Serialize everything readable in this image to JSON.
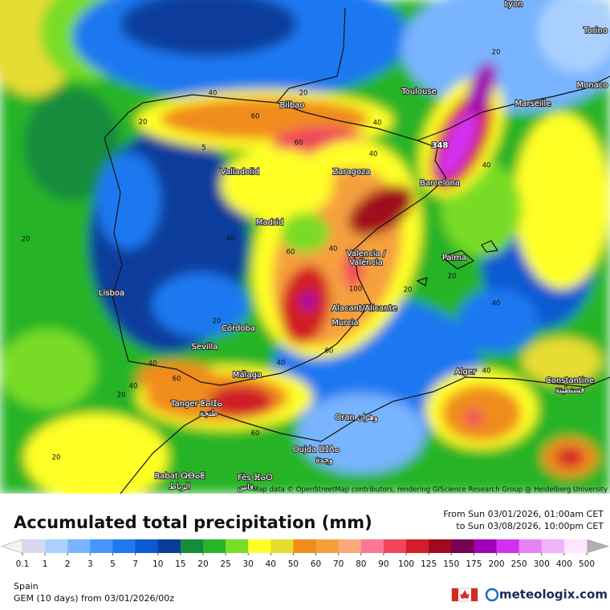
{
  "map": {
    "attribution": "Map data © OpenStreetMap contributors, rendering GIScience Research Group @ Heidelberg University",
    "cities": [
      "Lyon",
      "Torino",
      "Monaco",
      "Marseille",
      "Toulouse",
      "Bilbao",
      "Zaragoza",
      "Barcelona",
      "Valladolid",
      "Madrid",
      "Valencia /",
      "València",
      "Palma",
      "Lisboa",
      "Alacant/Alicante",
      "Murcia",
      "Córdoba",
      "Sevilla",
      "Málaga",
      "Alger",
      "Constantine",
      "قسنطينة",
      "Tanger ⵟⴰⵏⵊⴰ",
      "طنجة",
      "Oran وهران",
      "Oujda ⵡⵊⴷⴰ",
      "وجدة",
      "Rabat ⵕⴱⴰⵟ",
      "الرباط",
      "Fès ⴼⴰⵙ",
      "فاس"
    ],
    "max_label": "348",
    "contour_labels": [
      "40",
      "20",
      "60",
      "20",
      "5",
      "40",
      "60",
      "40",
      "20",
      "40",
      "40",
      "60",
      "40",
      "20",
      "20",
      "40",
      "20",
      "60",
      "40",
      "40",
      "60",
      "40",
      "20",
      "60",
      "20",
      "40",
      "100",
      "20"
    ]
  },
  "footer": {
    "title": "Accumulated total precipitation (mm)",
    "period_from": "From Sun 03/01/2026, 01:00am CET",
    "period_to": "to Sun 03/08/2026, 10:00pm CET",
    "region": "Spain",
    "model": "GEM (10 days) from 03/01/2026/00z",
    "brand": "meteologix.com"
  },
  "legend": {
    "labels": [
      "0.1",
      "1",
      "2",
      "3",
      "5",
      "7",
      "10",
      "15",
      "20",
      "25",
      "30",
      "40",
      "50",
      "60",
      "70",
      "80",
      "90",
      "100",
      "125",
      "150",
      "175",
      "200",
      "250",
      "300",
      "400",
      "500"
    ],
    "colors": [
      "#d8d8f0",
      "#aad0ff",
      "#78b4ff",
      "#4696ff",
      "#1e78f0",
      "#0a5ad2",
      "#0a3c9c",
      "#148c3c",
      "#28b428",
      "#78dc28",
      "#ffff28",
      "#e6dc32",
      "#f08c1e",
      "#f5a03c",
      "#faaa78",
      "#fa7896",
      "#f0465a",
      "#d21e28",
      "#a00a1e",
      "#780050",
      "#a000b4",
      "#d232f0",
      "#e682f5",
      "#f0b4fa",
      "#ffe6ff"
    ],
    "arrow_colors": [
      "#f4f4f4",
      "#b0b0b0"
    ]
  }
}
